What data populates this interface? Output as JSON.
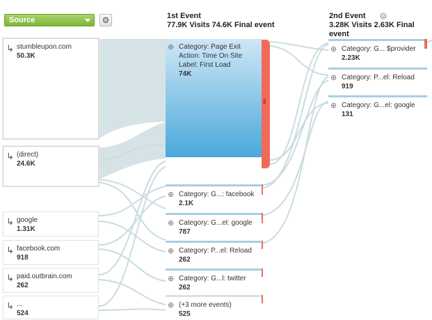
{
  "toolbar": {
    "dimension_select": "Source",
    "settings_icon": "gear-icon"
  },
  "columns": {
    "first": {
      "title": "1st Event",
      "summary": "77.9K Visits 74.6K Final event"
    },
    "second": {
      "title": "2nd Event",
      "summary": "3.28K Visits 2.63K Final event"
    }
  },
  "sources": [
    {
      "name": "stumbleupon.com",
      "value": "50.3K"
    },
    {
      "name": "(direct)",
      "value": "24.6K"
    },
    {
      "name": "google",
      "value": "1.31K"
    },
    {
      "name": "facebook.com",
      "value": "918"
    },
    {
      "name": "paid.outbrain.com",
      "value": "262"
    },
    {
      "name": "...",
      "value": "524"
    }
  ],
  "first_events": [
    {
      "lines": [
        "Category: Page Exit",
        "Action: Time On Site",
        "Label: First Load"
      ],
      "value": "74K"
    },
    {
      "lines": [
        "Category: G...: facebook"
      ],
      "value": "2.1K"
    },
    {
      "lines": [
        "Category: G...el: google"
      ],
      "value": "787"
    },
    {
      "lines": [
        "Category: P...el: Reload"
      ],
      "value": "262"
    },
    {
      "lines": [
        "Category: G...l: twitter"
      ],
      "value": "262"
    },
    {
      "lines": [
        "(+3 more events)"
      ],
      "value": "525"
    }
  ],
  "second_events": [
    {
      "lines": [
        "Category: G... $provider"
      ],
      "value": "2.23K"
    },
    {
      "lines": [
        "Category: P...el: Reload"
      ],
      "value": "919"
    },
    {
      "lines": [
        "Category: G...el: google"
      ],
      "value": "131"
    }
  ],
  "colors": {
    "flow": "#d6e3e6",
    "flow_line": "#c9dcdf",
    "dropoff": "#f06a5a",
    "node_bar": "#a8cde6",
    "main_node_top": "#cfe7f6",
    "main_node_bottom": "#4aa8da",
    "select_green": "#7eb637"
  },
  "icons": {
    "source_node": "enter-arrow-icon",
    "event_node": "event-icon",
    "dropoff": "dropoff-arrow-icon",
    "close": "close-icon"
  }
}
